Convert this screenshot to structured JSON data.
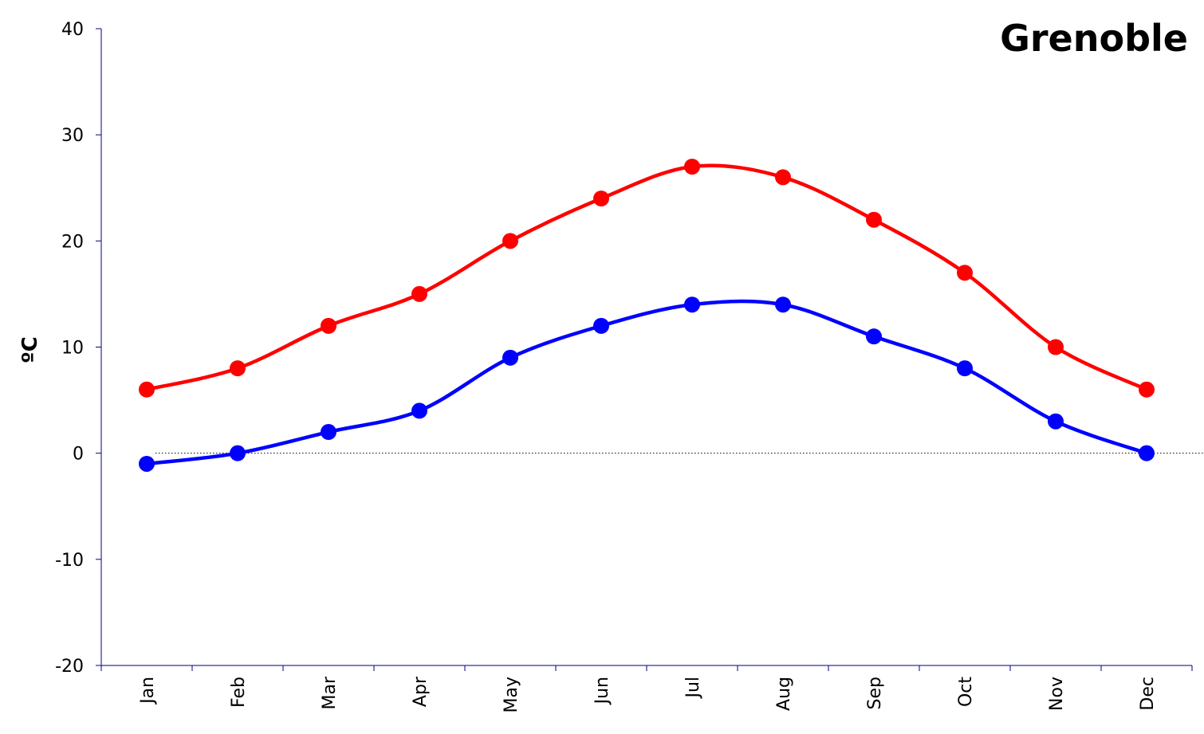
{
  "chart_data": {
    "type": "line",
    "title": "Grenoble",
    "xlabel": "",
    "ylabel": "ºC",
    "categories": [
      "Jan",
      "Feb",
      "Mar",
      "Apr",
      "May",
      "Jun",
      "Jul",
      "Aug",
      "Sep",
      "Oct",
      "Nov",
      "Dec"
    ],
    "ylim": [
      -20,
      40
    ],
    "yticks": [
      "-20",
      "-10",
      "0",
      "10",
      "20",
      "30",
      "40"
    ],
    "grid": false,
    "zero_line": true,
    "series": [
      {
        "color": "#ff0000",
        "values": [
          6,
          8,
          12,
          15,
          20,
          24,
          27,
          26,
          22,
          17,
          10,
          6
        ]
      },
      {
        "color": "#0000ff",
        "values": [
          -1,
          0,
          2,
          4,
          9,
          12,
          14,
          14,
          11,
          8,
          3,
          0
        ]
      }
    ]
  }
}
